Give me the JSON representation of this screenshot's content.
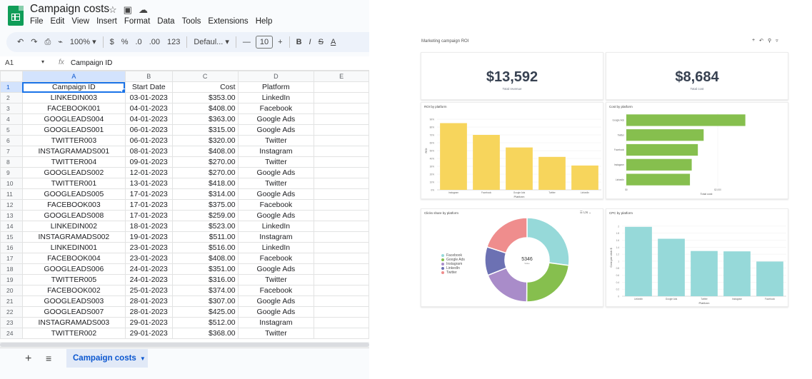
{
  "sheets": {
    "title": "Campaign costs",
    "menu": [
      "File",
      "Edit",
      "View",
      "Insert",
      "Format",
      "Data",
      "Tools",
      "Extensions",
      "Help"
    ],
    "toolbar": {
      "zoom": "100%",
      "currency": "$",
      "percent": "%",
      "dec_decrease": ".0",
      "dec_increase": ".00",
      "number_format": "123",
      "font": "Defaul...",
      "font_size": "10"
    },
    "name_box": "A1",
    "formula_value": "Campaign ID",
    "columns": [
      "A",
      "B",
      "C",
      "D",
      "E"
    ],
    "rows": [
      [
        "Campaign ID",
        "Start Date",
        "Cost",
        "Platform"
      ],
      [
        "LINKEDIN003",
        "03-01-2023",
        "$353.00",
        "LinkedIn"
      ],
      [
        "FACEBOOK001",
        "04-01-2023",
        "$408.00",
        "Facebook"
      ],
      [
        "GOOGLEADS004",
        "04-01-2023",
        "$363.00",
        "Google Ads"
      ],
      [
        "GOOGLEADS001",
        "06-01-2023",
        "$315.00",
        "Google Ads"
      ],
      [
        "TWITTER003",
        "06-01-2023",
        "$320.00",
        "Twitter"
      ],
      [
        "INSTAGRAMADS001",
        "08-01-2023",
        "$408.00",
        "Instagram"
      ],
      [
        "TWITTER004",
        "09-01-2023",
        "$270.00",
        "Twitter"
      ],
      [
        "GOOGLEADS002",
        "12-01-2023",
        "$270.00",
        "Google Ads"
      ],
      [
        "TWITTER001",
        "13-01-2023",
        "$418.00",
        "Twitter"
      ],
      [
        "GOOGLEADS005",
        "17-01-2023",
        "$314.00",
        "Google Ads"
      ],
      [
        "FACEBOOK003",
        "17-01-2023",
        "$375.00",
        "Facebook"
      ],
      [
        "GOOGLEADS008",
        "17-01-2023",
        "$259.00",
        "Google Ads"
      ],
      [
        "LINKEDIN002",
        "18-01-2023",
        "$523.00",
        "LinkedIn"
      ],
      [
        "INSTAGRAMADS002",
        "19-01-2023",
        "$511.00",
        "Instagram"
      ],
      [
        "LINKEDIN001",
        "23-01-2023",
        "$516.00",
        "LinkedIn"
      ],
      [
        "FACEBOOK004",
        "23-01-2023",
        "$408.00",
        "Facebook"
      ],
      [
        "GOOGLEADS006",
        "24-01-2023",
        "$351.00",
        "Google Ads"
      ],
      [
        "TWITTER005",
        "24-01-2023",
        "$316.00",
        "Twitter"
      ],
      [
        "FACEBOOK002",
        "25-01-2023",
        "$374.00",
        "Facebook"
      ],
      [
        "GOOGLEADS003",
        "28-01-2023",
        "$307.00",
        "Google Ads"
      ],
      [
        "GOOGLEADS007",
        "28-01-2023",
        "$425.00",
        "Google Ads"
      ],
      [
        "INSTAGRAMADS003",
        "29-01-2023",
        "$512.00",
        "Instagram"
      ],
      [
        "TWITTER002",
        "29-01-2023",
        "$368.00",
        "Twitter"
      ]
    ],
    "sheet_tab": "Campaign costs"
  },
  "dashboard": {
    "title": "Marketing campaign ROI",
    "kpis": [
      {
        "value": "$13,592",
        "label": "Total revenue"
      },
      {
        "value": "$8,684",
        "label": "Total cost"
      }
    ],
    "colors": {
      "yellow": "#f7d55c",
      "green": "#86bf4e",
      "teal": "#96d9d9",
      "facebook": "#96d9d9",
      "google_ads": "#86bf4e",
      "instagram": "#a98cc9",
      "linkedin": "#6c71b3",
      "twitter": "#ef8d8d"
    }
  },
  "chart_data": [
    {
      "type": "bar",
      "title": "ROI by platform",
      "xlabel": "Platform",
      "ylabel": "ROI",
      "categories": [
        "Instagram",
        "Facebook",
        "Google Ads",
        "Twitter",
        "LinkedIn"
      ],
      "values": [
        0.85,
        0.7,
        0.54,
        0.42,
        0.31
      ],
      "ylim": [
        0,
        1.0
      ],
      "yticks": [
        "0%",
        "10%",
        "20%",
        "30%",
        "40%",
        "50%",
        "60%",
        "70%",
        "80%",
        "90%"
      ]
    },
    {
      "type": "bar",
      "orientation": "horizontal",
      "title": "Cost by platform",
      "xlabel": "Total cost",
      "categories": [
        "Google Ads",
        "Twitter",
        "Facebook",
        "Instagram",
        "LinkedIn"
      ],
      "values": [
        2604,
        1692,
        1565,
        1431,
        1392
      ],
      "xlim": [
        0,
        3500
      ],
      "xticks": [
        "$0",
        "$2,000"
      ]
    },
    {
      "type": "pie",
      "title": "Clicks share by platform",
      "center_value": "5346",
      "center_label": "Value",
      "labels": [
        "Facebook",
        "Google Ads",
        "Instagram",
        "LinkedIn",
        "Twitter"
      ],
      "values": [
        1450,
        1230,
        1010,
        586,
        1070
      ],
      "toolbar": "LN"
    },
    {
      "type": "bar",
      "title": "CPC by platform",
      "xlabel": "Platform",
      "ylabel": "Cost per click $",
      "categories": [
        "LinkedIn",
        "Google Ads",
        "Twitter",
        "Instagram",
        "Facebook"
      ],
      "values": [
        1.98,
        1.64,
        1.29,
        1.28,
        0.99
      ],
      "ylim": [
        0,
        2.2
      ],
      "yticks": [
        "0",
        "0.2",
        "0.4",
        "0.6",
        "0.8",
        "1",
        "1.2",
        "1.4",
        "1.6",
        "1.8",
        "2"
      ]
    }
  ]
}
